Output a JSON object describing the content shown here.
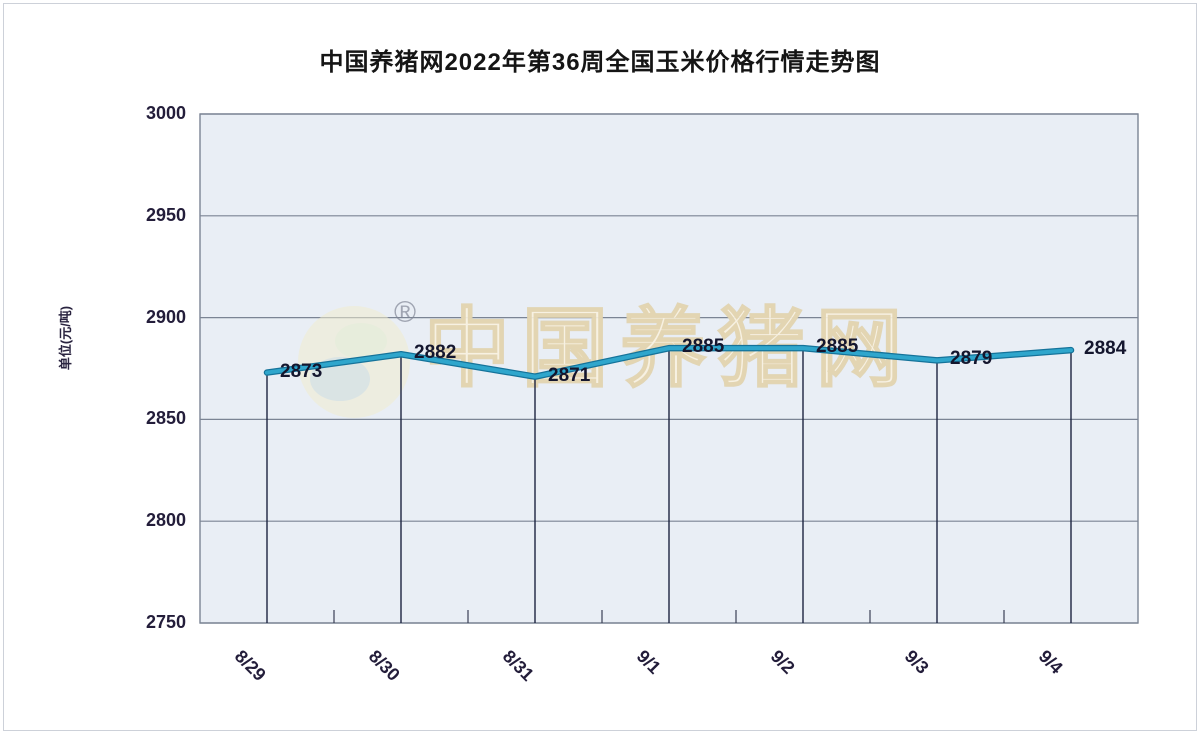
{
  "chart_data": {
    "type": "line",
    "title": "中国养猪网2022年第36周全国玉米价格行情走势图",
    "ylabel": "单位(元/吨)",
    "xlabel": "",
    "categories": [
      "8/29",
      "8/30",
      "8/31",
      "9/1",
      "9/2",
      "9/3",
      "9/4"
    ],
    "values": [
      2873,
      2882,
      2871,
      2885,
      2885,
      2879,
      2884
    ],
    "data_labels": [
      "2873",
      "2882",
      "2871",
      "2885",
      "2885",
      "2879",
      "2884"
    ],
    "ylim": [
      2750,
      3000
    ],
    "yticks": [
      2750,
      2800,
      2850,
      2900,
      2950,
      3000
    ],
    "grid": "horizontal",
    "legend": "none",
    "colors": {
      "line": "#2fa6cc",
      "line_edge": "#15739a",
      "drop_line": "#1c2340",
      "gridline": "#7b8494",
      "plot_background": "#e9eef5",
      "label_text": "#14162e",
      "tick_text": "#231d3a",
      "title_text": "#151515"
    }
  },
  "watermark": {
    "text": "中国养猪网",
    "reg_mark": "®"
  }
}
